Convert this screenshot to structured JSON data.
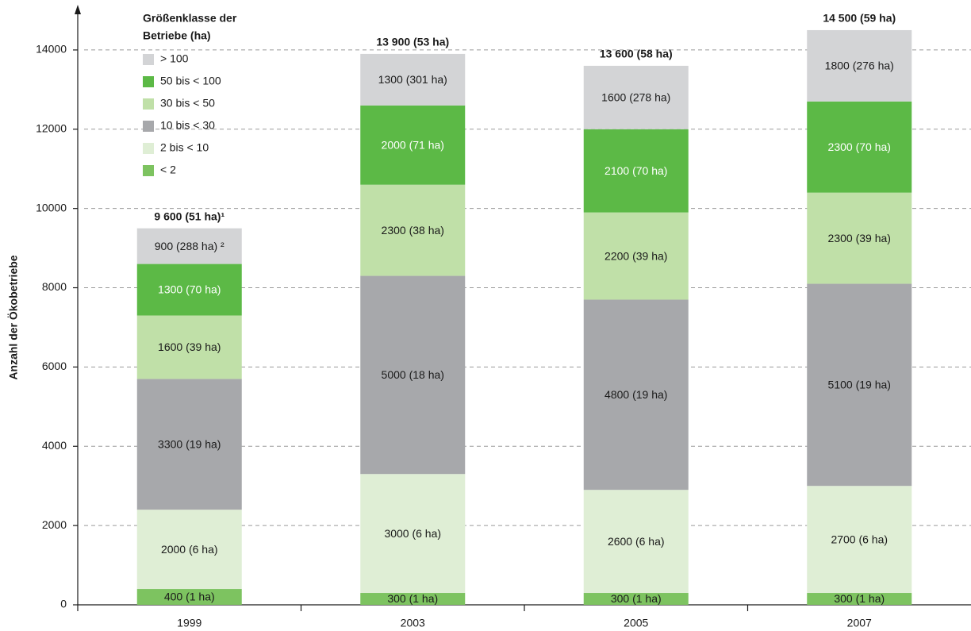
{
  "chart_data": {
    "type": "stacked-bar",
    "y_label": "Anzahl der Ökobetriebe",
    "legend_title": [
      "Größenklasse der",
      "Betriebe (ha)"
    ],
    "categories": [
      "1999",
      "2003",
      "2005",
      "2007"
    ],
    "series": [
      {
        "name": "< 2",
        "color": "#7dc360",
        "values": [
          400,
          300,
          300,
          300
        ],
        "value_labels": [
          "400 (1 ha)",
          "300 (1 ha)",
          "300 (1 ha)",
          "300 (1 ha)"
        ]
      },
      {
        "name": "2 bis < 10",
        "color": "#dfeed5",
        "values": [
          2000,
          3000,
          2600,
          2700
        ],
        "value_labels": [
          "2000 (6 ha)",
          "3000 (6 ha)",
          "2600 (6 ha)",
          "2700 (6 ha)"
        ]
      },
      {
        "name": "10 bis < 30",
        "color": "#a7a8ab",
        "values": [
          3300,
          5000,
          4800,
          5100
        ],
        "value_labels": [
          "3300 (19 ha)",
          "5000 (18 ha)",
          "4800 (19 ha)",
          "5100 (19 ha)"
        ]
      },
      {
        "name": "30 bis < 50",
        "color": "#c0e0a8",
        "values": [
          1600,
          2300,
          2200,
          2300
        ],
        "value_labels": [
          "1600 (39 ha)",
          "2300 (38 ha)",
          "2200 (39 ha)",
          "2300 (39 ha)"
        ]
      },
      {
        "name": "50 bis < 100",
        "color": "#5cb946",
        "values": [
          1300,
          2000,
          2100,
          2300
        ],
        "value_labels": [
          "1300 (70 ha)",
          "2000 (71 ha)",
          "2100 (70 ha)",
          "2300 (70 ha)"
        ]
      },
      {
        "name": "> 100",
        "color": "#d3d4d6",
        "values": [
          900,
          1300,
          1600,
          1800
        ],
        "value_labels": [
          "900 (288 ha) ²",
          "1300 (301 ha)",
          "1600 (278 ha)",
          "1800 (276 ha)"
        ]
      }
    ],
    "total_labels": [
      "9 600 (51 ha)¹",
      "13 900 (53 ha)",
      "13 600 (58 ha)",
      "14 500 (59 ha)"
    ],
    "ylim": [
      0,
      15000
    ],
    "yticks": [
      0,
      2000,
      4000,
      6000,
      8000,
      10000,
      12000,
      14000
    ],
    "grid": true
  }
}
